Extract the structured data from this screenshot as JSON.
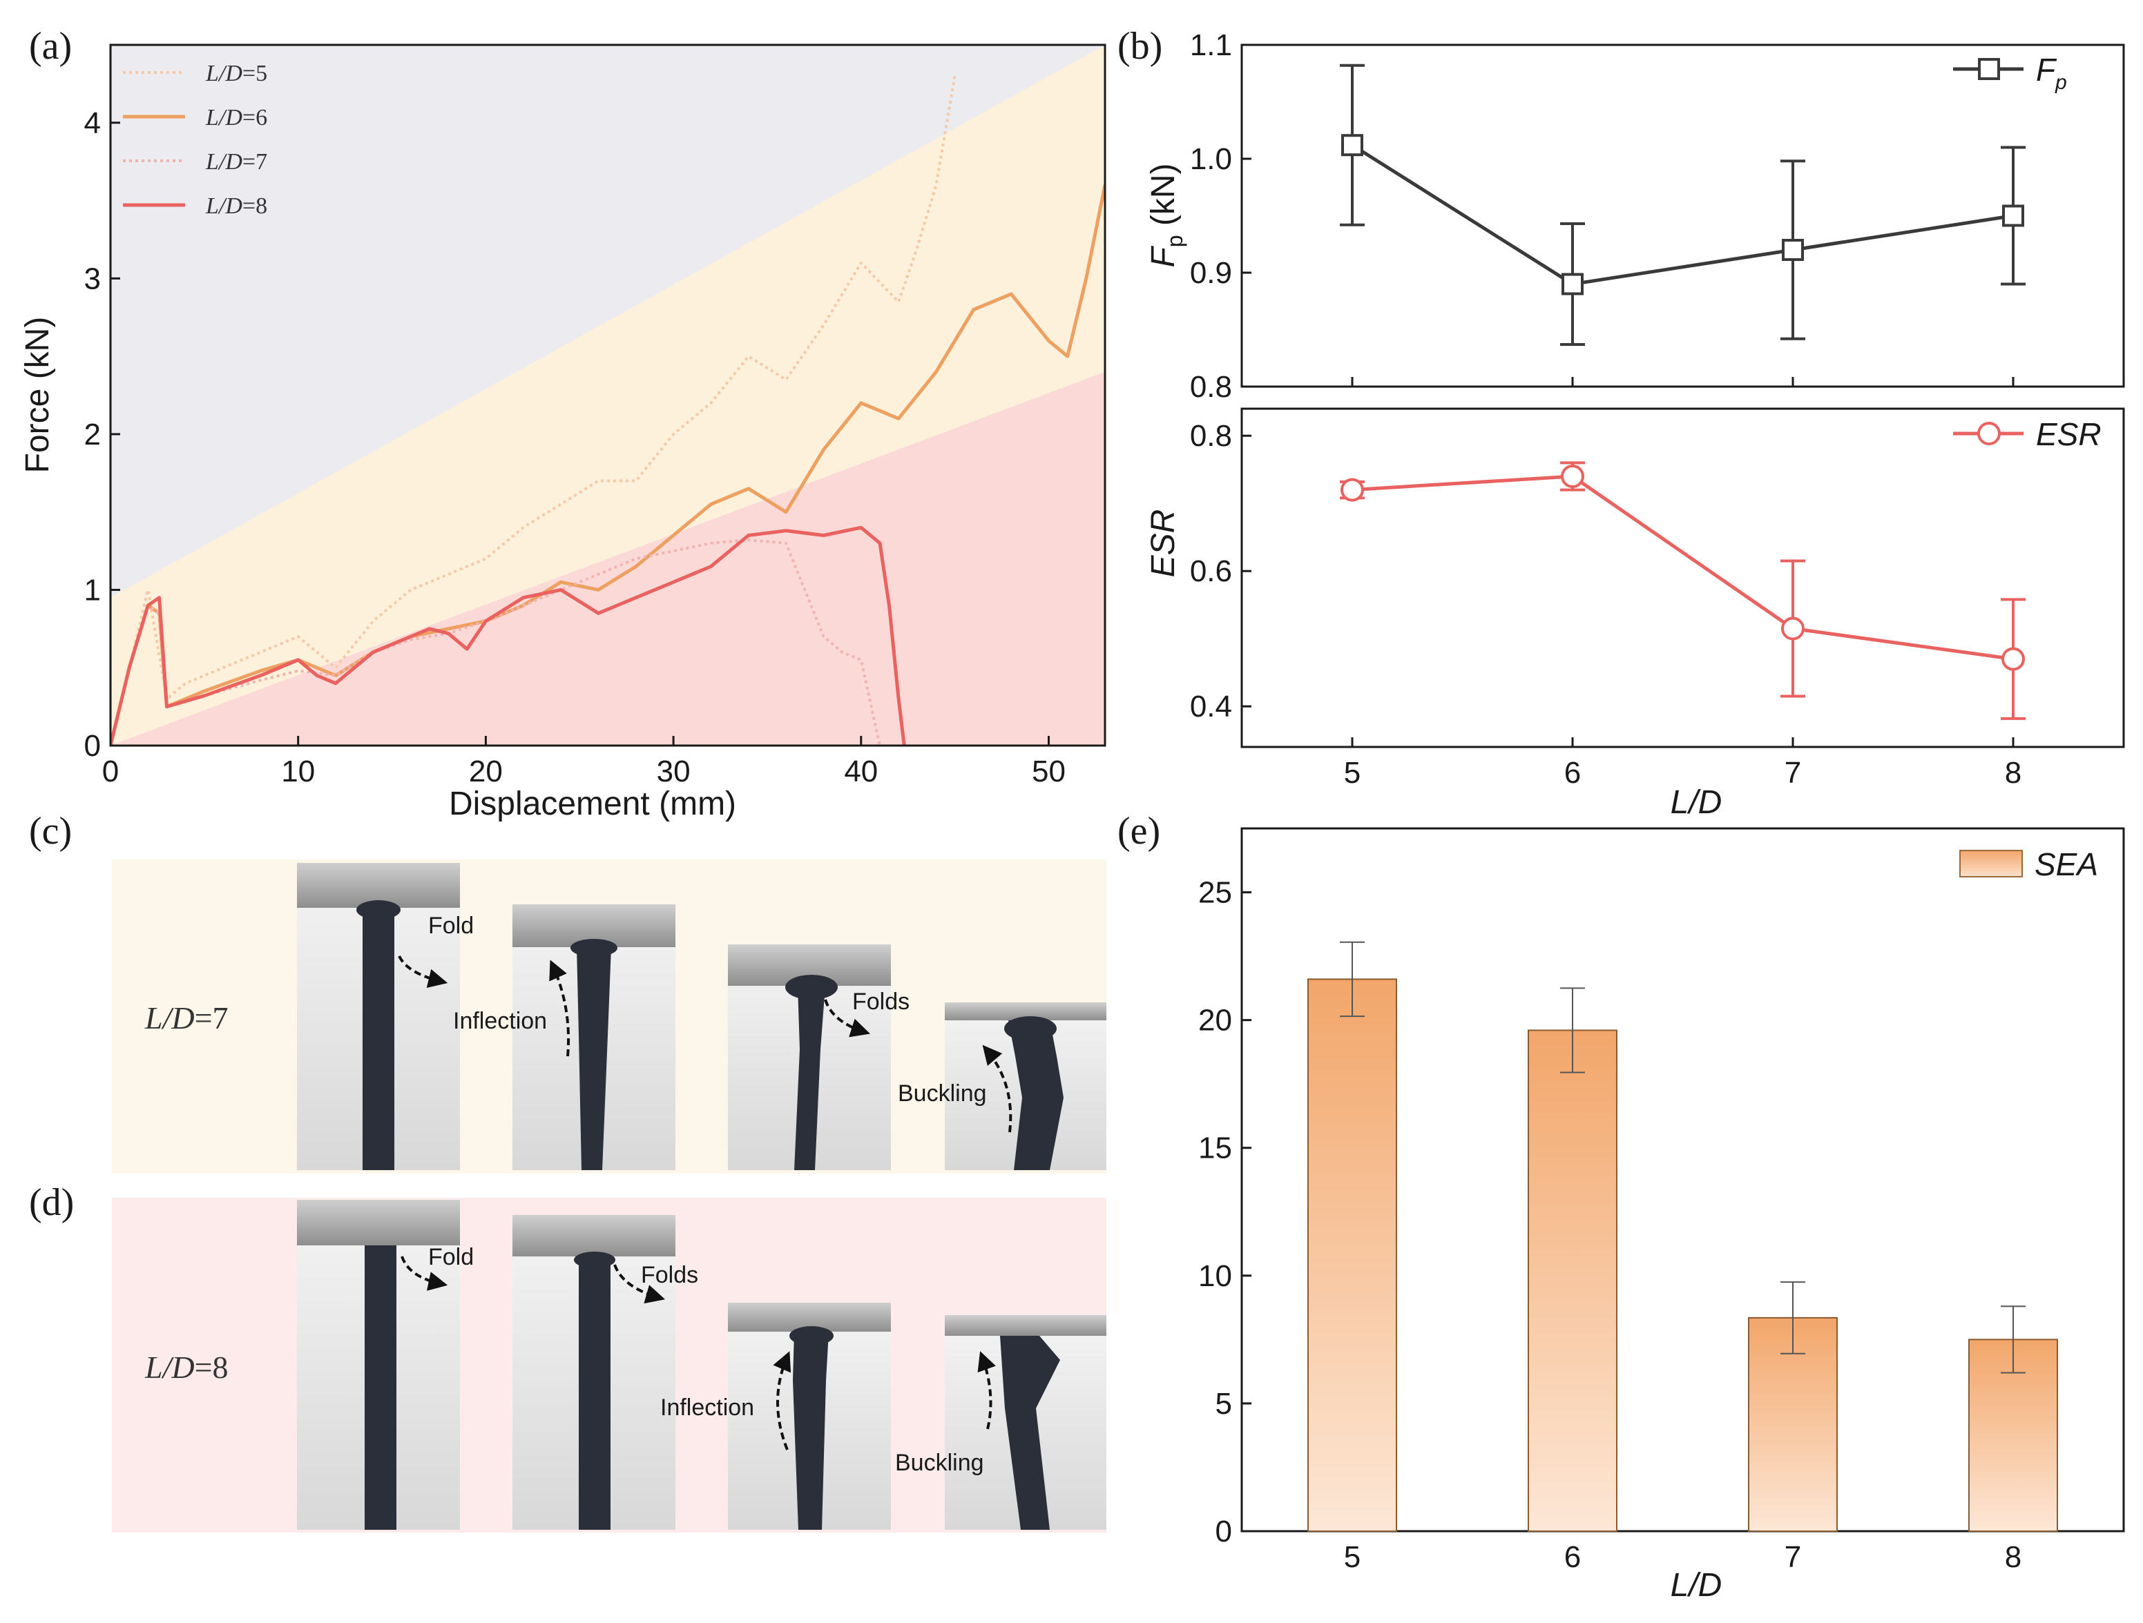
{
  "panels": {
    "a": "(a)",
    "b": "(b)",
    "c": "(c)",
    "d": "(d)",
    "e": "(e)"
  },
  "chart_data": [
    {
      "id": "a",
      "type": "line",
      "xlabel": "Displacement (mm)",
      "ylabel": "Force (kN)",
      "xlim": [
        0,
        53
      ],
      "ylim": [
        0,
        4.5
      ],
      "xticks": [
        "0",
        "10",
        "20",
        "30",
        "40",
        "50"
      ],
      "yticks": [
        "0",
        "1",
        "2",
        "3",
        "4"
      ],
      "legend_position": "top-left",
      "series": [
        {
          "name": "L/D=5",
          "label_prefix": "L/D",
          "label_suffix": "=5",
          "color": "#f5c9a6",
          "style": "dotted",
          "x": [
            0,
            1,
            2,
            3,
            4,
            6,
            8,
            10,
            12,
            14,
            16,
            18,
            20,
            22,
            24,
            26,
            28,
            30,
            32,
            34,
            36,
            38,
            40,
            42,
            43,
            44,
            45
          ],
          "y": [
            0,
            0.5,
            1.0,
            0.3,
            0.4,
            0.5,
            0.6,
            0.7,
            0.5,
            0.8,
            1.0,
            1.1,
            1.2,
            1.4,
            1.55,
            1.7,
            1.7,
            2.0,
            2.2,
            2.5,
            2.35,
            2.7,
            3.1,
            2.85,
            3.2,
            3.6,
            4.3
          ]
        },
        {
          "name": "L/D=6",
          "label_prefix": "L/D",
          "label_suffix": "=6",
          "color": "#eea061",
          "style": "solid",
          "x": [
            0,
            1,
            2,
            2.6,
            3,
            5,
            8,
            10,
            12,
            14,
            16,
            18,
            20,
            22,
            24,
            26,
            28,
            30,
            32,
            34,
            36,
            38,
            40,
            42,
            44,
            46,
            48,
            50,
            51,
            52,
            53
          ],
          "y": [
            0,
            0.5,
            0.9,
            0.85,
            0.25,
            0.35,
            0.48,
            0.55,
            0.45,
            0.6,
            0.7,
            0.75,
            0.8,
            0.9,
            1.05,
            1.0,
            1.15,
            1.35,
            1.55,
            1.65,
            1.5,
            1.9,
            2.2,
            2.1,
            2.4,
            2.8,
            2.9,
            2.6,
            2.5,
            3.0,
            3.6
          ]
        },
        {
          "name": "L/D=7",
          "label_prefix": "L/D",
          "label_suffix": "=7",
          "color": "#f0b3b0",
          "style": "dotted",
          "x": [
            0,
            1,
            2,
            2.6,
            3,
            5,
            8,
            10,
            12,
            14,
            16,
            18,
            20,
            22,
            24,
            26,
            28,
            30,
            32,
            34,
            36,
            37,
            38,
            39,
            40,
            41
          ],
          "y": [
            0,
            0.5,
            0.9,
            0.85,
            0.25,
            0.32,
            0.42,
            0.48,
            0.45,
            0.6,
            0.68,
            0.72,
            0.8,
            0.9,
            1.0,
            1.1,
            1.2,
            1.25,
            1.3,
            1.32,
            1.3,
            1.0,
            0.7,
            0.6,
            0.55,
            0
          ]
        },
        {
          "name": "L/D=8",
          "label_prefix": "L/D",
          "label_suffix": "=8",
          "color": "#e9625f",
          "style": "solid",
          "x": [
            0,
            1,
            2,
            2.6,
            3,
            5,
            8,
            10,
            11,
            12,
            14,
            16,
            17,
            18,
            19,
            20,
            22,
            24,
            26,
            28,
            30,
            32,
            34,
            36,
            38,
            40,
            41,
            41.5,
            42,
            42.3
          ],
          "y": [
            0,
            0.5,
            0.9,
            0.95,
            0.25,
            0.32,
            0.45,
            0.55,
            0.45,
            0.4,
            0.6,
            0.7,
            0.75,
            0.72,
            0.62,
            0.8,
            0.95,
            1.0,
            0.85,
            0.95,
            1.05,
            1.15,
            1.35,
            1.38,
            1.35,
            1.4,
            1.3,
            0.9,
            0.3,
            0
          ]
        }
      ]
    },
    {
      "id": "b-top",
      "type": "line",
      "categories": [
        "5",
        "6",
        "7",
        "8"
      ],
      "ylim": [
        0.8,
        1.1
      ],
      "yticks": [
        "0.8",
        "0.9",
        "1.0",
        "1.1"
      ],
      "ylabel_main": "F",
      "ylabel_sub": "p",
      "ylabel_unit": " (kN)",
      "series": [
        {
          "name": "F",
          "name_sub": "p",
          "color": "#3a3a3a",
          "marker": "square",
          "values": [
            1.012,
            0.89,
            0.92,
            0.95
          ],
          "err": [
            0.07,
            0.053,
            0.078,
            0.06
          ]
        }
      ]
    },
    {
      "id": "b-bottom",
      "type": "line",
      "categories": [
        "5",
        "6",
        "7",
        "8"
      ],
      "xlabel": "L/D",
      "ylabel": "ESR",
      "ylim": [
        0.34,
        0.84
      ],
      "yticks": [
        "0.4",
        "0.6",
        "0.8"
      ],
      "series": [
        {
          "name": "ESR",
          "color": "#e9625f",
          "marker": "circle",
          "values": [
            0.72,
            0.74,
            0.515,
            0.47
          ],
          "err": [
            0.012,
            0.02,
            0.1,
            0.088
          ]
        }
      ]
    },
    {
      "id": "e",
      "type": "bar",
      "categories": [
        "5",
        "6",
        "7",
        "8"
      ],
      "xlabel": "L/D",
      "ylabel": "",
      "ylim": [
        0,
        27.5
      ],
      "yticks": [
        "0",
        "5",
        "10",
        "15",
        "20",
        "25"
      ],
      "series": [
        {
          "name": "SEA",
          "color": "#f2a66a",
          "values": [
            21.6,
            19.6,
            8.35,
            7.5
          ],
          "err": [
            1.45,
            1.65,
            1.4,
            1.3
          ]
        }
      ]
    }
  ],
  "photos": {
    "c": {
      "label_prefix": "L/D",
      "label_suffix": "=7",
      "annotations": [
        "Fold",
        "Inflection",
        "Folds",
        "Buckling"
      ]
    },
    "d": {
      "label_prefix": "L/D",
      "label_suffix": "=8",
      "annotations": [
        "Fold",
        "Folds",
        "Inflection",
        "Buckling"
      ]
    }
  },
  "colors": {
    "region_top": "#ecebf0",
    "region_mid": "#fdf1dc",
    "region_bottom": "#fbd9d6",
    "photo_bg_c": "#fdf6ea",
    "photo_bg_d": "#fdebeb"
  }
}
